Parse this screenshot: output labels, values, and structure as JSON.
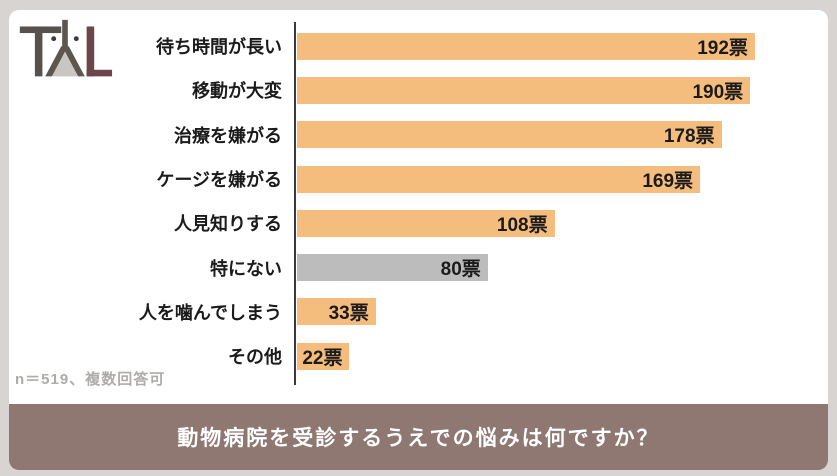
{
  "logo": {
    "alt": "TYL",
    "colors": {
      "t": "#57514B",
      "cat": "#5D564E",
      "cat_fill": "#C9C6C2",
      "dot": "#3E3A35",
      "l": "#6B474B"
    }
  },
  "chart_data": {
    "type": "bar",
    "orientation": "horizontal",
    "title": "動物病院を受診するうえでの悩みは何ですか？",
    "categories": [
      "待ち時間が長い",
      "移動が大変",
      "治療を嫌がる",
      "ケージを嫌がる",
      "人見知りする",
      "特にない",
      "人を噛んでしまう",
      "その他"
    ],
    "values": [
      192,
      190,
      178,
      169,
      108,
      80,
      33,
      22
    ],
    "value_labels": [
      "192票",
      "190票",
      "178票",
      "169票",
      "108票",
      "80票",
      "33票",
      "22票"
    ],
    "unit": "票",
    "xlim": [
      0,
      200
    ],
    "bar_colors": [
      "#F5BD7D",
      "#F5BD7D",
      "#F5BD7D",
      "#F5BD7D",
      "#F5BD7D",
      "#BCBCBC",
      "#F5BD7D",
      "#F5BD7D"
    ],
    "grid": false,
    "legend": false,
    "value_label_position": "inside-end"
  },
  "footnote": "n＝519、複数回答可",
  "banner": {
    "text": "動物病院を受診するうえでの悩みは何ですか？",
    "bg": "#8F7772",
    "text_color": "#FFFFFF"
  },
  "colors": {
    "frame": "#D8D4D1",
    "card": "#FFFFFF",
    "axis": "#3A3A3A",
    "label_text": "#1B1B1B",
    "footnote_text": "#AEACAA"
  }
}
